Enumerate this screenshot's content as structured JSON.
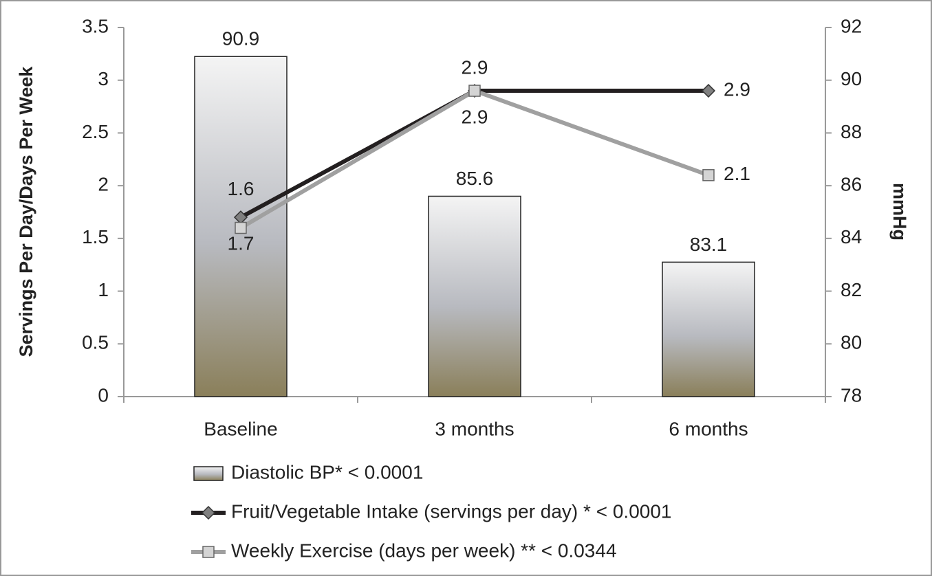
{
  "chart_data": {
    "type": "bar-line",
    "categories": [
      "Baseline",
      "3 months",
      "6 months"
    ],
    "ylabel": "Servings Per Day/Days Per Week",
    "y2label": "mmHg",
    "ylim": [
      0,
      3.5
    ],
    "yticks": [
      0,
      0.5,
      1,
      1.5,
      2,
      2.5,
      3,
      3.5
    ],
    "y2lim": [
      78,
      92
    ],
    "y2ticks": [
      78,
      80,
      82,
      84,
      86,
      88,
      90,
      92
    ],
    "series": [
      {
        "name": "Diastolic BP* < 0.0001",
        "type": "bar",
        "axis": "y2",
        "color": "#8a7f5a",
        "values": [
          90.9,
          85.6,
          83.1
        ]
      },
      {
        "name": "Fruit/Vegetable Intake (servings per day) * < 0.0001",
        "type": "line",
        "color": "#231f20",
        "marker": "diamond",
        "values": [
          1.7,
          2.9,
          2.9
        ]
      },
      {
        "name": "Weekly Exercise (days per week) ** < 0.0344",
        "type": "line",
        "color": "#a0a0a0",
        "marker": "square",
        "values": [
          1.6,
          2.9,
          2.1
        ]
      }
    ],
    "legend": "bottom"
  }
}
